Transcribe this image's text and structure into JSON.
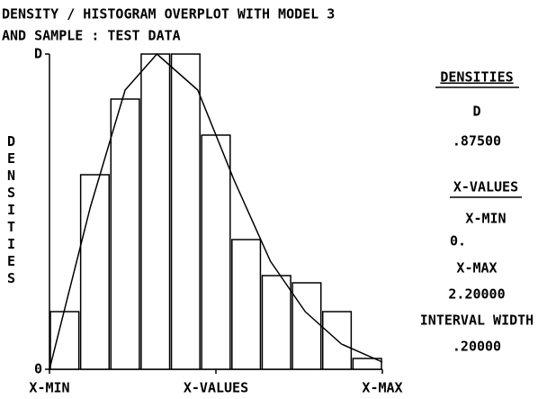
{
  "chart_data": {
    "type": "histogram",
    "title": "DENSITY / HISTOGRAM OVERPLOT WITH MODEL 3",
    "subtitle": "AND SAMPLE : TEST DATA",
    "y_label": "DENSITIES",
    "bins": [
      0,
      0.2,
      0.4,
      0.6,
      0.8,
      1.0,
      1.2,
      1.4,
      1.6,
      1.8,
      2.0,
      2.2
    ],
    "values": [
      0.16,
      0.54,
      0.75,
      0.875,
      0.875,
      0.65,
      0.36,
      0.26,
      0.24,
      0.16,
      0.03
    ],
    "color": "#ffffff",
    "density": {
      "x": [
        0,
        0.27,
        0.5,
        0.71,
        0.98,
        1.22,
        1.46,
        1.69,
        1.93,
        2.2
      ],
      "values": [
        0,
        0.45,
        0.775,
        0.875,
        0.775,
        0.525,
        0.3,
        0.16,
        0.07,
        0.02
      ],
      "color": "#000000"
    },
    "xlim": [
      0,
      2.2
    ],
    "ylim": [
      0,
      0.875
    ],
    "xticks": [
      {
        "value": 0,
        "label": "X-MIN"
      },
      {
        "value": 1.1,
        "label": "X-VALUES"
      },
      {
        "value": 2.2,
        "label": "X-MAX"
      }
    ],
    "yticks": [
      0,
      {
        "value": 0.875,
        "label": "D"
      }
    ],
    "side_panel": {
      "densities_title": "DENSITIES",
      "d_label": "D",
      "d_value": ".87500",
      "xvalues_title": "X-VALUES",
      "xmin_label": "X-MIN",
      "xmin_value": "0.",
      "xmax_label": "X-MAX",
      "xmax_value": "2.20000",
      "interval_label": "INTERVAL WIDTH",
      "interval_value": ".20000"
    }
  }
}
